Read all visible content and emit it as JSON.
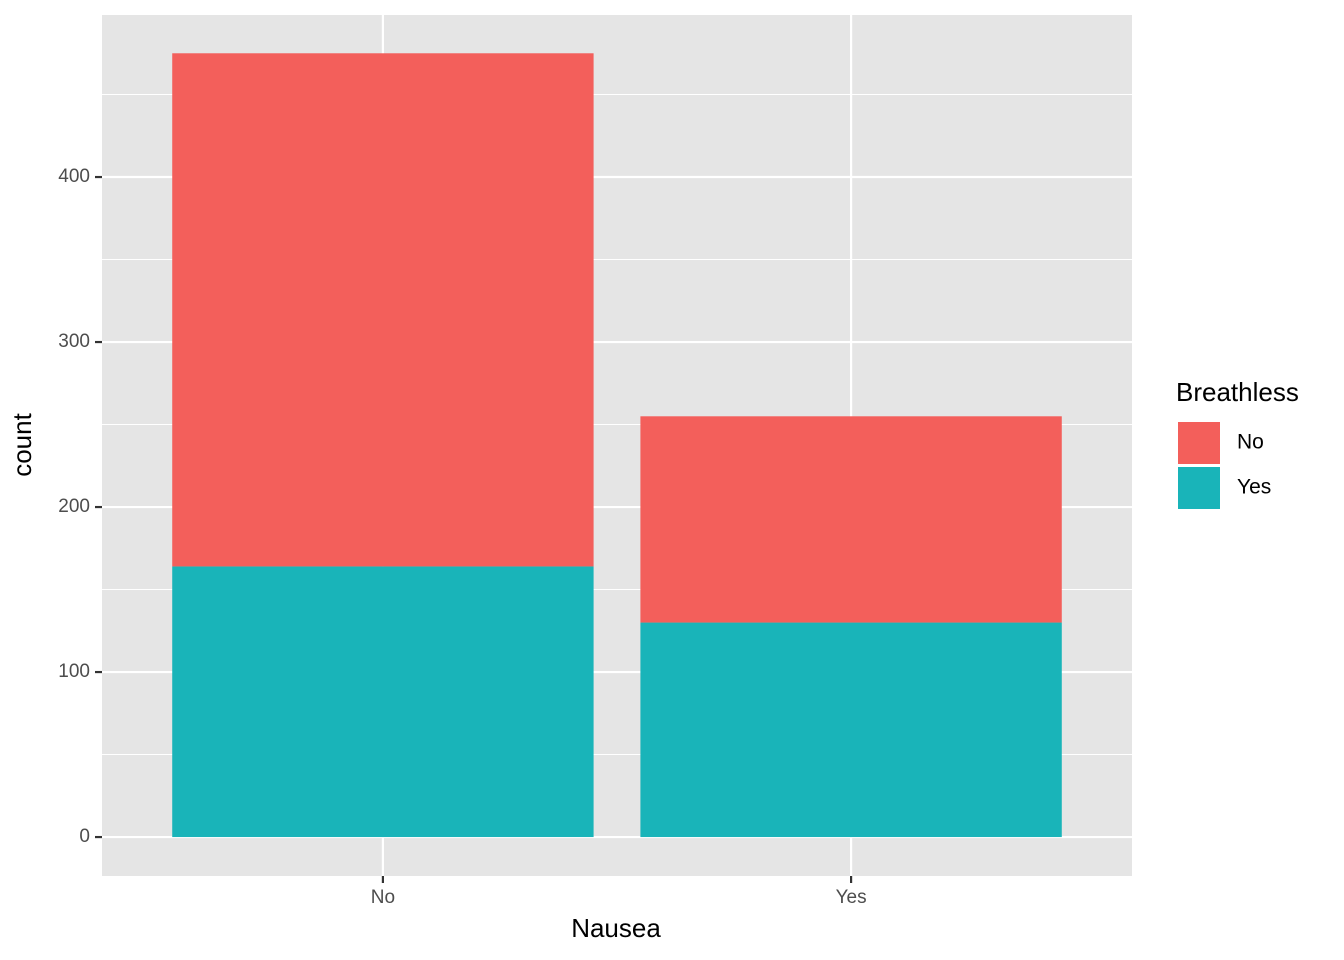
{
  "chart_data": {
    "type": "stacked_bar",
    "x_label": "Nausea",
    "y_label": "count",
    "categories": [
      "No",
      "Yes"
    ],
    "legend_title": "Breathless",
    "series": [
      {
        "name": "No",
        "color": "#f35f5b",
        "values": [
          311,
          125
        ]
      },
      {
        "name": "Yes",
        "color": "#19b4b9",
        "values": [
          164,
          130
        ]
      }
    ],
    "stack_order": "last_at_bottom",
    "ylim": [
      -23.6,
      498.2
    ],
    "yticks": [
      0,
      100,
      200,
      300,
      400
    ],
    "minor_yticks": [
      50,
      150,
      250,
      350,
      450
    ],
    "grid": true,
    "legend_position": "right"
  }
}
